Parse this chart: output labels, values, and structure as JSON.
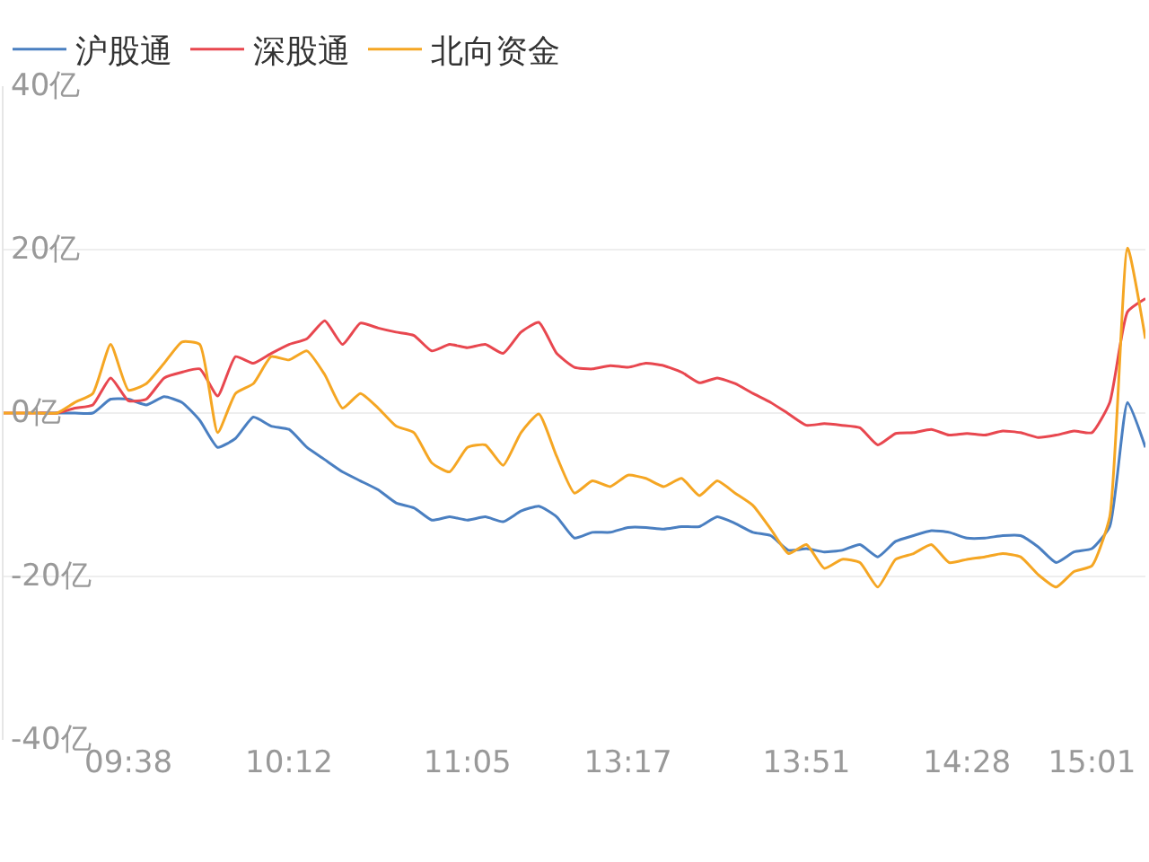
{
  "chart_data": {
    "type": "line",
    "ylim": [
      -40,
      40
    ],
    "categories": [
      null,
      null,
      null,
      null,
      null,
      null,
      null,
      "09:38",
      null,
      null,
      null,
      null,
      null,
      null,
      null,
      null,
      "10:12",
      null,
      null,
      null,
      null,
      null,
      null,
      null,
      null,
      null,
      "11:05",
      null,
      null,
      null,
      null,
      null,
      null,
      null,
      null,
      "13:17",
      null,
      null,
      null,
      null,
      null,
      null,
      null,
      null,
      null,
      "13:51",
      null,
      null,
      null,
      null,
      null,
      null,
      null,
      null,
      "14:28",
      null,
      null,
      null,
      null,
      null,
      null,
      "15:01",
      null,
      null,
      null
    ],
    "yticks": [
      {
        "value": 40,
        "label": "40亿"
      },
      {
        "value": 20,
        "label": "20亿"
      },
      {
        "value": 0,
        "label": "0亿"
      },
      {
        "value": -20,
        "label": "-20亿"
      },
      {
        "value": -40,
        "label": "-40亿"
      }
    ],
    "grid": "y",
    "legend": "top left",
    "marker": "none",
    "line_style": "solid",
    "series": [
      {
        "name": "沪股通",
        "color": "#4a7fc1",
        "values": [
          null,
          null,
          0,
          0,
          0,
          0,
          1.7,
          1.7,
          1,
          2,
          1.3,
          -0.9,
          -4.2,
          -3.1,
          -0.5,
          -1.6,
          -2,
          -4.2,
          -5.7,
          -7.2,
          -8.3,
          -9.4,
          -11,
          -11.6,
          -13.1,
          -12.7,
          -13.1,
          -12.7,
          -13.3,
          -12,
          -11.4,
          -12.7,
          -15.3,
          -14.6,
          -14.6,
          -14,
          -14,
          -14.2,
          -13.9,
          -13.9,
          -12.7,
          -13.5,
          -14.6,
          -15,
          -16.8,
          -16.6,
          -17,
          -16.8,
          -16.1,
          -17.6,
          -15.7,
          -15,
          -14.4,
          -14.6,
          -15.3,
          -15.3,
          -15,
          -15,
          -16.4,
          -18.3,
          -17,
          -16.6,
          -13.9,
          1.3,
          -4.2
        ]
      },
      {
        "name": "深股通",
        "color": "#e8474f",
        "values": [
          0,
          0,
          0,
          0,
          0.6,
          1,
          4.3,
          1.5,
          1.7,
          4.3,
          5,
          5.4,
          2.1,
          6.9,
          6.1,
          7.3,
          8.4,
          9.1,
          11.3,
          8.4,
          11,
          10.4,
          9.9,
          9.5,
          7.6,
          8.4,
          8,
          8.4,
          7.3,
          9.9,
          11.1,
          7.3,
          5.6,
          5.4,
          5.8,
          5.6,
          6.1,
          5.8,
          5,
          3.7,
          4.3,
          3.6,
          2.4,
          1.3,
          -0.1,
          -1.5,
          -1.3,
          -1.5,
          -1.8,
          -3.9,
          -2.5,
          -2.4,
          -2,
          -2.7,
          -2.5,
          -2.7,
          -2.2,
          -2.4,
          -3,
          -2.7,
          -2.2,
          -2.4,
          1.3,
          12.4,
          14
        ]
      },
      {
        "name": "北向资金",
        "color": "#f5a623",
        "values": [
          0,
          0,
          0,
          0,
          1.3,
          2.4,
          8.4,
          2.8,
          3.6,
          6.1,
          8.7,
          8.4,
          -2.4,
          2.4,
          3.6,
          6.9,
          6.5,
          7.6,
          4.7,
          0.6,
          2.4,
          0.6,
          -1.6,
          -2.4,
          -6.1,
          -7.2,
          -4.2,
          -3.9,
          -6.4,
          -2.4,
          -0.1,
          -5.3,
          -9.8,
          -8.3,
          -9,
          -7.6,
          -8,
          -9,
          -8,
          -10.1,
          -8.3,
          -9.8,
          -11.3,
          -14.2,
          -17.2,
          -16.1,
          -19,
          -17.9,
          -18.3,
          -21.3,
          -17.9,
          -17.2,
          -16.1,
          -18.3,
          -17.9,
          -17.6,
          -17.2,
          -17.6,
          -19.8,
          -21.3,
          -19.4,
          -18.7,
          -12.7,
          20.2,
          9.1
        ]
      }
    ]
  }
}
